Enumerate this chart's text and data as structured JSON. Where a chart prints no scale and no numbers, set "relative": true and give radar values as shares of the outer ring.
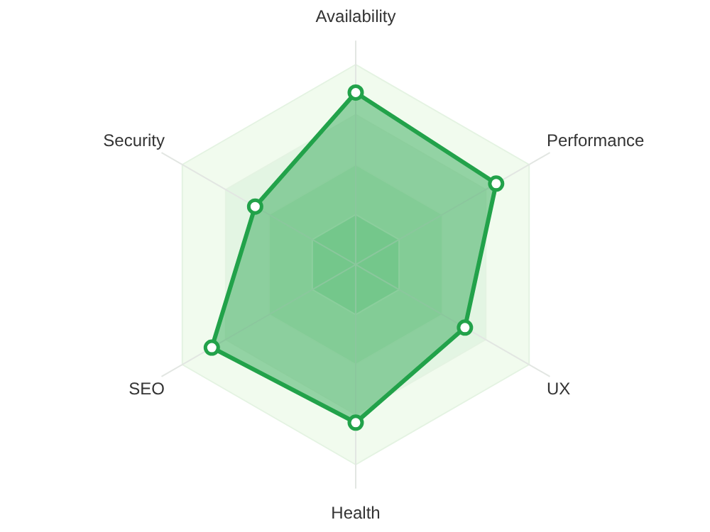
{
  "chart_data": {
    "type": "radar",
    "relative": true,
    "grid": true,
    "marker": "circle",
    "categories": [
      "Availability",
      "Performance",
      "UX",
      "Health",
      "SEO",
      "Security"
    ],
    "series": [
      {
        "color": "#22a24a",
        "values": [
          0.86,
          0.81,
          0.63,
          0.79,
          0.83,
          0.58
        ]
      }
    ]
  }
}
